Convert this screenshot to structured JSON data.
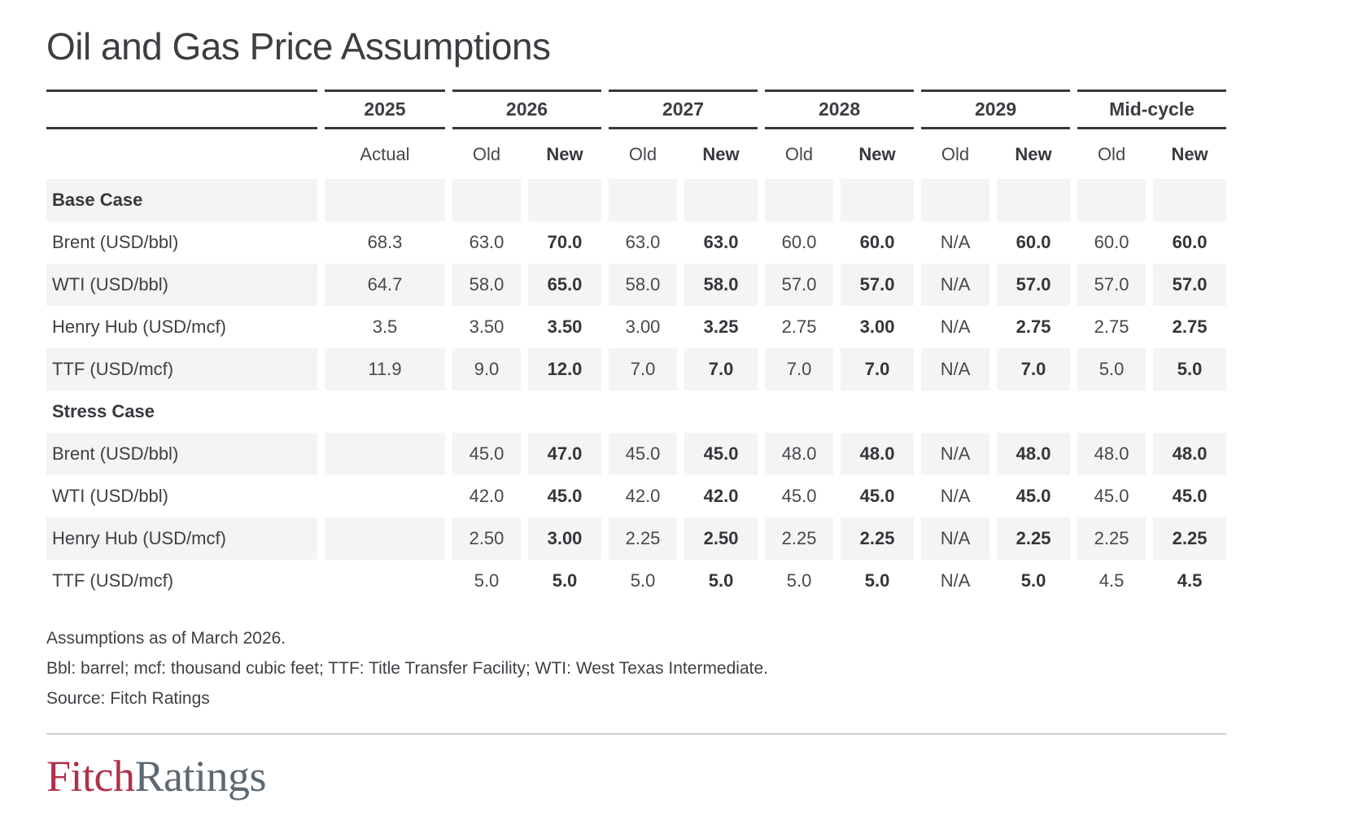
{
  "title": "Oil and Gas Price Assumptions",
  "chart_data": {
    "type": "table",
    "title": "Oil and Gas Price Assumptions",
    "column_groups": [
      {
        "label": "2025",
        "columns": [
          "Actual"
        ]
      },
      {
        "label": "2026",
        "columns": [
          "Old",
          "New"
        ]
      },
      {
        "label": "2027",
        "columns": [
          "Old",
          "New"
        ]
      },
      {
        "label": "2028",
        "columns": [
          "Old",
          "New"
        ]
      },
      {
        "label": "2029",
        "columns": [
          "Old",
          "New"
        ]
      },
      {
        "label": "Mid-cycle",
        "columns": [
          "Old",
          "New"
        ]
      }
    ],
    "bold_value_columns": [
      2,
      4,
      6,
      8,
      10
    ],
    "sections": [
      {
        "label": "Base Case",
        "rows": [
          {
            "label": "Brent (USD/bbl)",
            "values": [
              "68.3",
              "63.0",
              "70.0",
              "63.0",
              "63.0",
              "60.0",
              "60.0",
              "N/A",
              "60.0",
              "60.0",
              "60.0"
            ]
          },
          {
            "label": "WTI (USD/bbl)",
            "values": [
              "64.7",
              "58.0",
              "65.0",
              "58.0",
              "58.0",
              "57.0",
              "57.0",
              "N/A",
              "57.0",
              "57.0",
              "57.0"
            ]
          },
          {
            "label": "Henry Hub (USD/mcf)",
            "values": [
              "3.5",
              "3.50",
              "3.50",
              "3.00",
              "3.25",
              "2.75",
              "3.00",
              "N/A",
              "2.75",
              "2.75",
              "2.75"
            ]
          },
          {
            "label": "TTF (USD/mcf)",
            "values": [
              "11.9",
              "9.0",
              "12.0",
              "7.0",
              "7.0",
              "7.0",
              "7.0",
              "N/A",
              "7.0",
              "5.0",
              "5.0"
            ]
          }
        ]
      },
      {
        "label": "Stress Case",
        "rows": [
          {
            "label": "Brent (USD/bbl)",
            "values": [
              "",
              "45.0",
              "47.0",
              "45.0",
              "45.0",
              "48.0",
              "48.0",
              "N/A",
              "48.0",
              "48.0",
              "48.0"
            ]
          },
          {
            "label": "WTI (USD/bbl)",
            "values": [
              "",
              "42.0",
              "45.0",
              "42.0",
              "42.0",
              "45.0",
              "45.0",
              "N/A",
              "45.0",
              "45.0",
              "45.0"
            ]
          },
          {
            "label": "Henry Hub (USD/mcf)",
            "values": [
              "",
              "2.50",
              "3.00",
              "2.25",
              "2.50",
              "2.25",
              "2.25",
              "N/A",
              "2.25",
              "2.25",
              "2.25"
            ]
          },
          {
            "label": "TTF (USD/mcf)",
            "values": [
              "",
              "5.0",
              "5.0",
              "5.0",
              "5.0",
              "5.0",
              "5.0",
              "N/A",
              "5.0",
              "4.5",
              "4.5"
            ]
          }
        ]
      }
    ],
    "footnotes": [
      "Assumptions as of March 2026.",
      "Bbl: barrel; mcf: thousand cubic feet; TTF: Title Transfer Facility; WTI: West Texas Intermediate.",
      "Source: Fitch Ratings"
    ]
  },
  "footnotes": [
    "Assumptions as of March 2026.",
    "Bbl: barrel; mcf: thousand cubic feet; TTF: Title Transfer Facility; WTI: West Texas Intermediate.",
    "Source: Fitch Ratings"
  ],
  "logo": {
    "fitch": "Fitch",
    "ratings": "Ratings"
  },
  "colors": {
    "accent_red": "#b13049",
    "logo_gray": "#5d6872",
    "row_shade": "#f4f4f5",
    "rule_dark": "#36393d",
    "divider": "#d0d0d0",
    "text_dark": "#3b3e42"
  }
}
